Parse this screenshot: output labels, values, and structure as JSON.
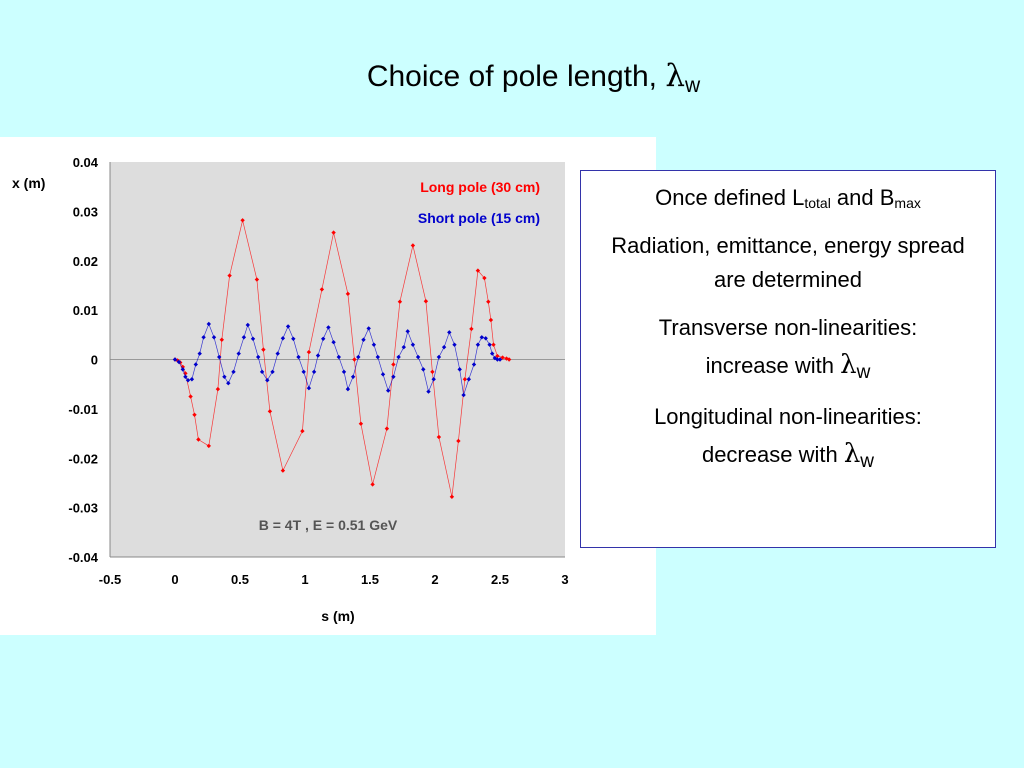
{
  "title": {
    "text": "Choice of pole length, ",
    "lambda": "λ",
    "sub": "w"
  },
  "colors": {
    "background": "#ccffff",
    "plot_area": "#dddddd",
    "long_pole": "#ff0000",
    "short_pole": "#0000cc",
    "box_border": "#3333aa"
  },
  "text_box": {
    "line1_pre": "Once defined L",
    "line1_sub1": "total",
    "line1_mid": " and B",
    "line1_sub2": "max",
    "line2": "Radiation, emittance, energy spread are determined",
    "line3_a": "Transverse non-linearities:",
    "line3_b": "increase with ",
    "line4_a": "Longitudinal non-linearities:",
    "line4_b": "decrease with ",
    "lambda": "λ",
    "sub": "w"
  },
  "chart_data": {
    "type": "scatter",
    "title": "",
    "xlabel": "s (m)",
    "ylabel": "x (m)",
    "xlim": [
      -0.5,
      3
    ],
    "ylim": [
      -0.04,
      0.04
    ],
    "xticks": [
      "-0.5",
      "0",
      "0.5",
      "1",
      "1.5",
      "2",
      "2.5",
      "3"
    ],
    "yticks": [
      "0.04",
      "0.03",
      "0.02",
      "0.01",
      "0",
      "-0.01",
      "-0.02",
      "-0.03",
      "-0.04"
    ],
    "grid": false,
    "legend_position": "top-right",
    "annotation": "B = 4T , E = 0.51 GeV",
    "series": [
      {
        "name": "Long pole (30 cm)",
        "color": "#ff0000",
        "x": [
          0.0,
          0.02,
          0.04,
          0.06,
          0.08,
          0.12,
          0.15,
          0.18,
          0.26,
          0.33,
          0.36,
          0.42,
          0.52,
          0.63,
          0.68,
          0.73,
          0.83,
          0.98,
          1.03,
          1.13,
          1.22,
          1.33,
          1.38,
          1.43,
          1.52,
          1.63,
          1.68,
          1.73,
          1.83,
          1.93,
          1.98,
          2.03,
          2.13,
          2.18,
          2.23,
          2.28,
          2.33,
          2.38,
          2.41,
          2.43,
          2.45,
          2.48,
          2.52,
          2.55,
          2.57
        ],
        "y": [
          0.0,
          -0.0002,
          -0.0006,
          -0.0015,
          -0.0028,
          -0.0075,
          -0.0112,
          -0.0162,
          -0.0175,
          -0.006,
          0.004,
          0.017,
          0.0282,
          0.0162,
          0.002,
          -0.0105,
          -0.0225,
          -0.0145,
          0.0015,
          0.0142,
          0.0257,
          0.0133,
          0.0,
          -0.013,
          -0.0253,
          -0.014,
          -0.001,
          0.0117,
          0.0231,
          0.0118,
          -0.0025,
          -0.0157,
          -0.0278,
          -0.0165,
          -0.004,
          0.0062,
          0.018,
          0.0165,
          0.0117,
          0.008,
          0.003,
          0.0007,
          0.0004,
          0.0002,
          0.0
        ]
      },
      {
        "name": "Short pole (15 cm)",
        "color": "#0000cc",
        "x": [
          0.0,
          0.03,
          0.06,
          0.08,
          0.1,
          0.13,
          0.16,
          0.19,
          0.22,
          0.26,
          0.3,
          0.34,
          0.38,
          0.41,
          0.45,
          0.49,
          0.53,
          0.56,
          0.6,
          0.64,
          0.67,
          0.71,
          0.75,
          0.79,
          0.83,
          0.87,
          0.91,
          0.95,
          0.99,
          1.03,
          1.07,
          1.1,
          1.14,
          1.18,
          1.22,
          1.26,
          1.3,
          1.33,
          1.37,
          1.41,
          1.45,
          1.49,
          1.53,
          1.56,
          1.6,
          1.64,
          1.68,
          1.72,
          1.76,
          1.79,
          1.83,
          1.87,
          1.91,
          1.95,
          1.99,
          2.03,
          2.07,
          2.11,
          2.15,
          2.19,
          2.22,
          2.26,
          2.3,
          2.33,
          2.36,
          2.39,
          2.42,
          2.44,
          2.46,
          2.48,
          2.5
        ],
        "y": [
          0.0,
          -0.0005,
          -0.002,
          -0.0035,
          -0.0042,
          -0.004,
          -0.001,
          0.0012,
          0.0045,
          0.0072,
          0.0045,
          0.0005,
          -0.0035,
          -0.0048,
          -0.0025,
          0.0012,
          0.0045,
          0.007,
          0.0042,
          0.0005,
          -0.0025,
          -0.0042,
          -0.0025,
          0.0012,
          0.0043,
          0.0067,
          0.0042,
          0.0005,
          -0.0025,
          -0.0058,
          -0.0025,
          0.0008,
          0.0042,
          0.0065,
          0.0035,
          0.0005,
          -0.0025,
          -0.006,
          -0.0035,
          0.0005,
          0.004,
          0.0063,
          0.003,
          0.0005,
          -0.003,
          -0.0063,
          -0.0035,
          0.0005,
          0.0025,
          0.0057,
          0.003,
          0.0005,
          -0.002,
          -0.0065,
          -0.004,
          0.0005,
          0.0025,
          0.0055,
          0.003,
          -0.002,
          -0.0072,
          -0.004,
          -0.001,
          0.003,
          0.0045,
          0.0043,
          0.003,
          0.0012,
          0.0003,
          0.0,
          0.0
        ]
      }
    ]
  }
}
